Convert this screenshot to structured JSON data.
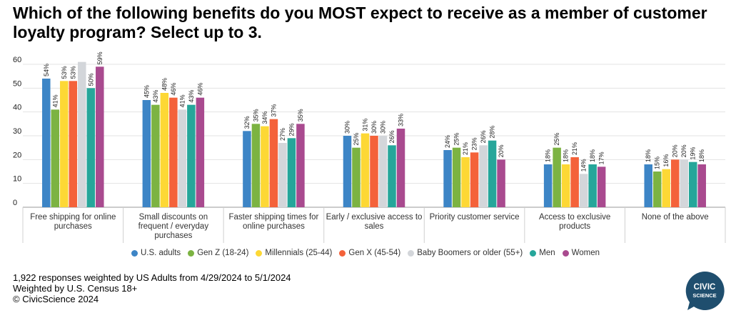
{
  "title": "Which of the following benefits do you MOST expect to receive as a member of customer loyalty program? Select up to 3.",
  "footer": {
    "line1": "1,922 responses weighted by US Adults from 4/29/2024 to 5/1/2024",
    "line2": "Weighted by U.S. Census 18+",
    "line3": "© CivicScience 2024"
  },
  "logo": {
    "line1": "CIVIC",
    "line2": "SCIENCE",
    "color": "#1f4e6e"
  },
  "chart_data": {
    "type": "bar",
    "title": "Which of the following benefits do you MOST expect to receive as a member of customer loyalty program? Select up to 3.",
    "xlabel": "",
    "ylabel": "",
    "ylim": [
      0,
      60
    ],
    "yticks": [
      0,
      10,
      20,
      30,
      40,
      50,
      60
    ],
    "grid": true,
    "legend_position": "bottom",
    "categories": [
      [
        "Free shipping for online",
        "purchases"
      ],
      [
        "Small discounts on",
        "frequent / everyday",
        "purchases"
      ],
      [
        "Faster shipping times for",
        "online purchases"
      ],
      [
        "Early / exclusive access to",
        "sales"
      ],
      [
        "Priority customer service"
      ],
      [
        "Access to exclusive",
        "products"
      ],
      [
        "None of the above"
      ]
    ],
    "series": [
      {
        "name": "U.S. adults",
        "color": "#3d85c6",
        "values": [
          54,
          45,
          32,
          30,
          24,
          18,
          18
        ],
        "labels": [
          "54%",
          "45%",
          "32%",
          "30%",
          "24%",
          "18%",
          "18%"
        ]
      },
      {
        "name": "Gen Z (18-24)",
        "color": "#7cb342",
        "values": [
          41,
          43,
          35,
          25,
          25,
          25,
          15
        ],
        "labels": [
          "41%",
          "43%",
          "35%",
          "25%",
          "25%",
          "25%",
          "15%"
        ]
      },
      {
        "name": "Millennials (25-44)",
        "color": "#fdd835",
        "values": [
          53,
          48,
          34,
          31,
          21,
          18,
          16
        ],
        "labels": [
          "53%",
          "48%",
          "34%",
          "31%",
          "21%",
          "18%",
          "16%"
        ]
      },
      {
        "name": "Gen X (45-54)",
        "color": "#f4623a",
        "values": [
          53,
          46,
          37,
          30,
          23,
          21,
          20
        ],
        "labels": [
          "53%",
          "46%",
          "37%",
          "30%",
          "23%",
          "21%",
          "20%"
        ]
      },
      {
        "name": "Baby Boomers or older (55+)",
        "color": "#d3d6da",
        "values": [
          61,
          41,
          27,
          30,
          26,
          14,
          20
        ],
        "labels": [
          "",
          "41%",
          "27%",
          "30%",
          "26%",
          "14%",
          "20%"
        ]
      },
      {
        "name": "Men",
        "color": "#26a69a",
        "values": [
          50,
          43,
          29,
          26,
          28,
          18,
          19
        ],
        "labels": [
          "50%",
          "43%",
          "29%",
          "26%",
          "28%",
          "18%",
          "19%"
        ]
      },
      {
        "name": "Women",
        "color": "#a94a8f",
        "values": [
          59,
          46,
          35,
          33,
          20,
          17,
          18
        ],
        "labels": [
          "59%",
          "46%",
          "35%",
          "33%",
          "20%",
          "17%",
          "18%"
        ]
      }
    ]
  }
}
